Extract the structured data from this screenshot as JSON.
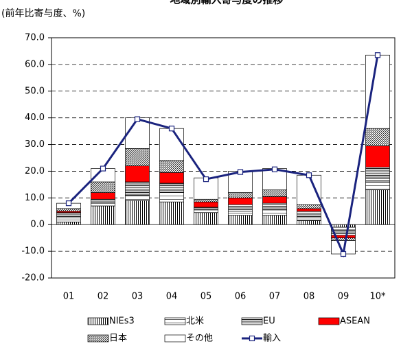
{
  "chart_data": {
    "type": "bar-line",
    "title": "地域別輸入寄与度の推移",
    "subtitle": "(前年比寄与度、%)",
    "categories": [
      "01",
      "02",
      "03",
      "04",
      "05",
      "06",
      "07",
      "08",
      "09",
      "10*"
    ],
    "ylim": [
      -20,
      70
    ],
    "yticks": [
      {
        "value": -20,
        "label": "-20.0"
      },
      {
        "value": -10,
        "label": "-10.0"
      },
      {
        "value": 0,
        "label": "0.0"
      },
      {
        "value": 10,
        "label": "10.0"
      },
      {
        "value": 20,
        "label": "20.0"
      },
      {
        "value": 30,
        "label": "30.0"
      },
      {
        "value": 40,
        "label": "40.0"
      },
      {
        "value": 50,
        "label": "50.0"
      },
      {
        "value": 60,
        "label": "60.0"
      },
      {
        "value": 70,
        "label": "70.0"
      }
    ],
    "grid": true,
    "series": [
      {
        "name": "NIEs3",
        "color": "#000000",
        "pattern": "vertical",
        "values": [
          1,
          7,
          9,
          8.5,
          4.5,
          3.5,
          3.5,
          1.5,
          -1,
          13
        ]
      },
      {
        "name": "北米",
        "color": "#000000",
        "pattern": "horizontal-sparse",
        "values": [
          1.5,
          1,
          2,
          3.5,
          1,
          1.5,
          2,
          1,
          -1,
          3
        ]
      },
      {
        "name": "EU",
        "color": "#000000",
        "pattern": "horizontal",
        "values": [
          2,
          1.5,
          5,
          3.5,
          1,
          2.5,
          2.5,
          2.5,
          -2,
          5.5
        ]
      },
      {
        "name": "ASEAN",
        "color": "#ff0000",
        "pattern": "solid",
        "values": [
          0.5,
          2.5,
          6,
          4,
          2,
          2.5,
          2.5,
          1,
          -1,
          8
        ]
      },
      {
        "name": "日本",
        "color": "#000000",
        "pattern": "diagonal",
        "values": [
          1,
          4,
          6.5,
          4.5,
          1,
          2,
          2.5,
          1.5,
          -1,
          6.5
        ]
      },
      {
        "name": "その他",
        "color": "#000000",
        "pattern": "none",
        "values": [
          2,
          5,
          11.5,
          12,
          8,
          8,
          8,
          11,
          -5,
          27.5
        ]
      },
      {
        "name": "輸入",
        "color": "#1a237e",
        "line": true,
        "values": [
          8,
          21,
          39.5,
          36,
          17,
          19.7,
          20.7,
          18.5,
          -11,
          63.5
        ]
      }
    ]
  }
}
